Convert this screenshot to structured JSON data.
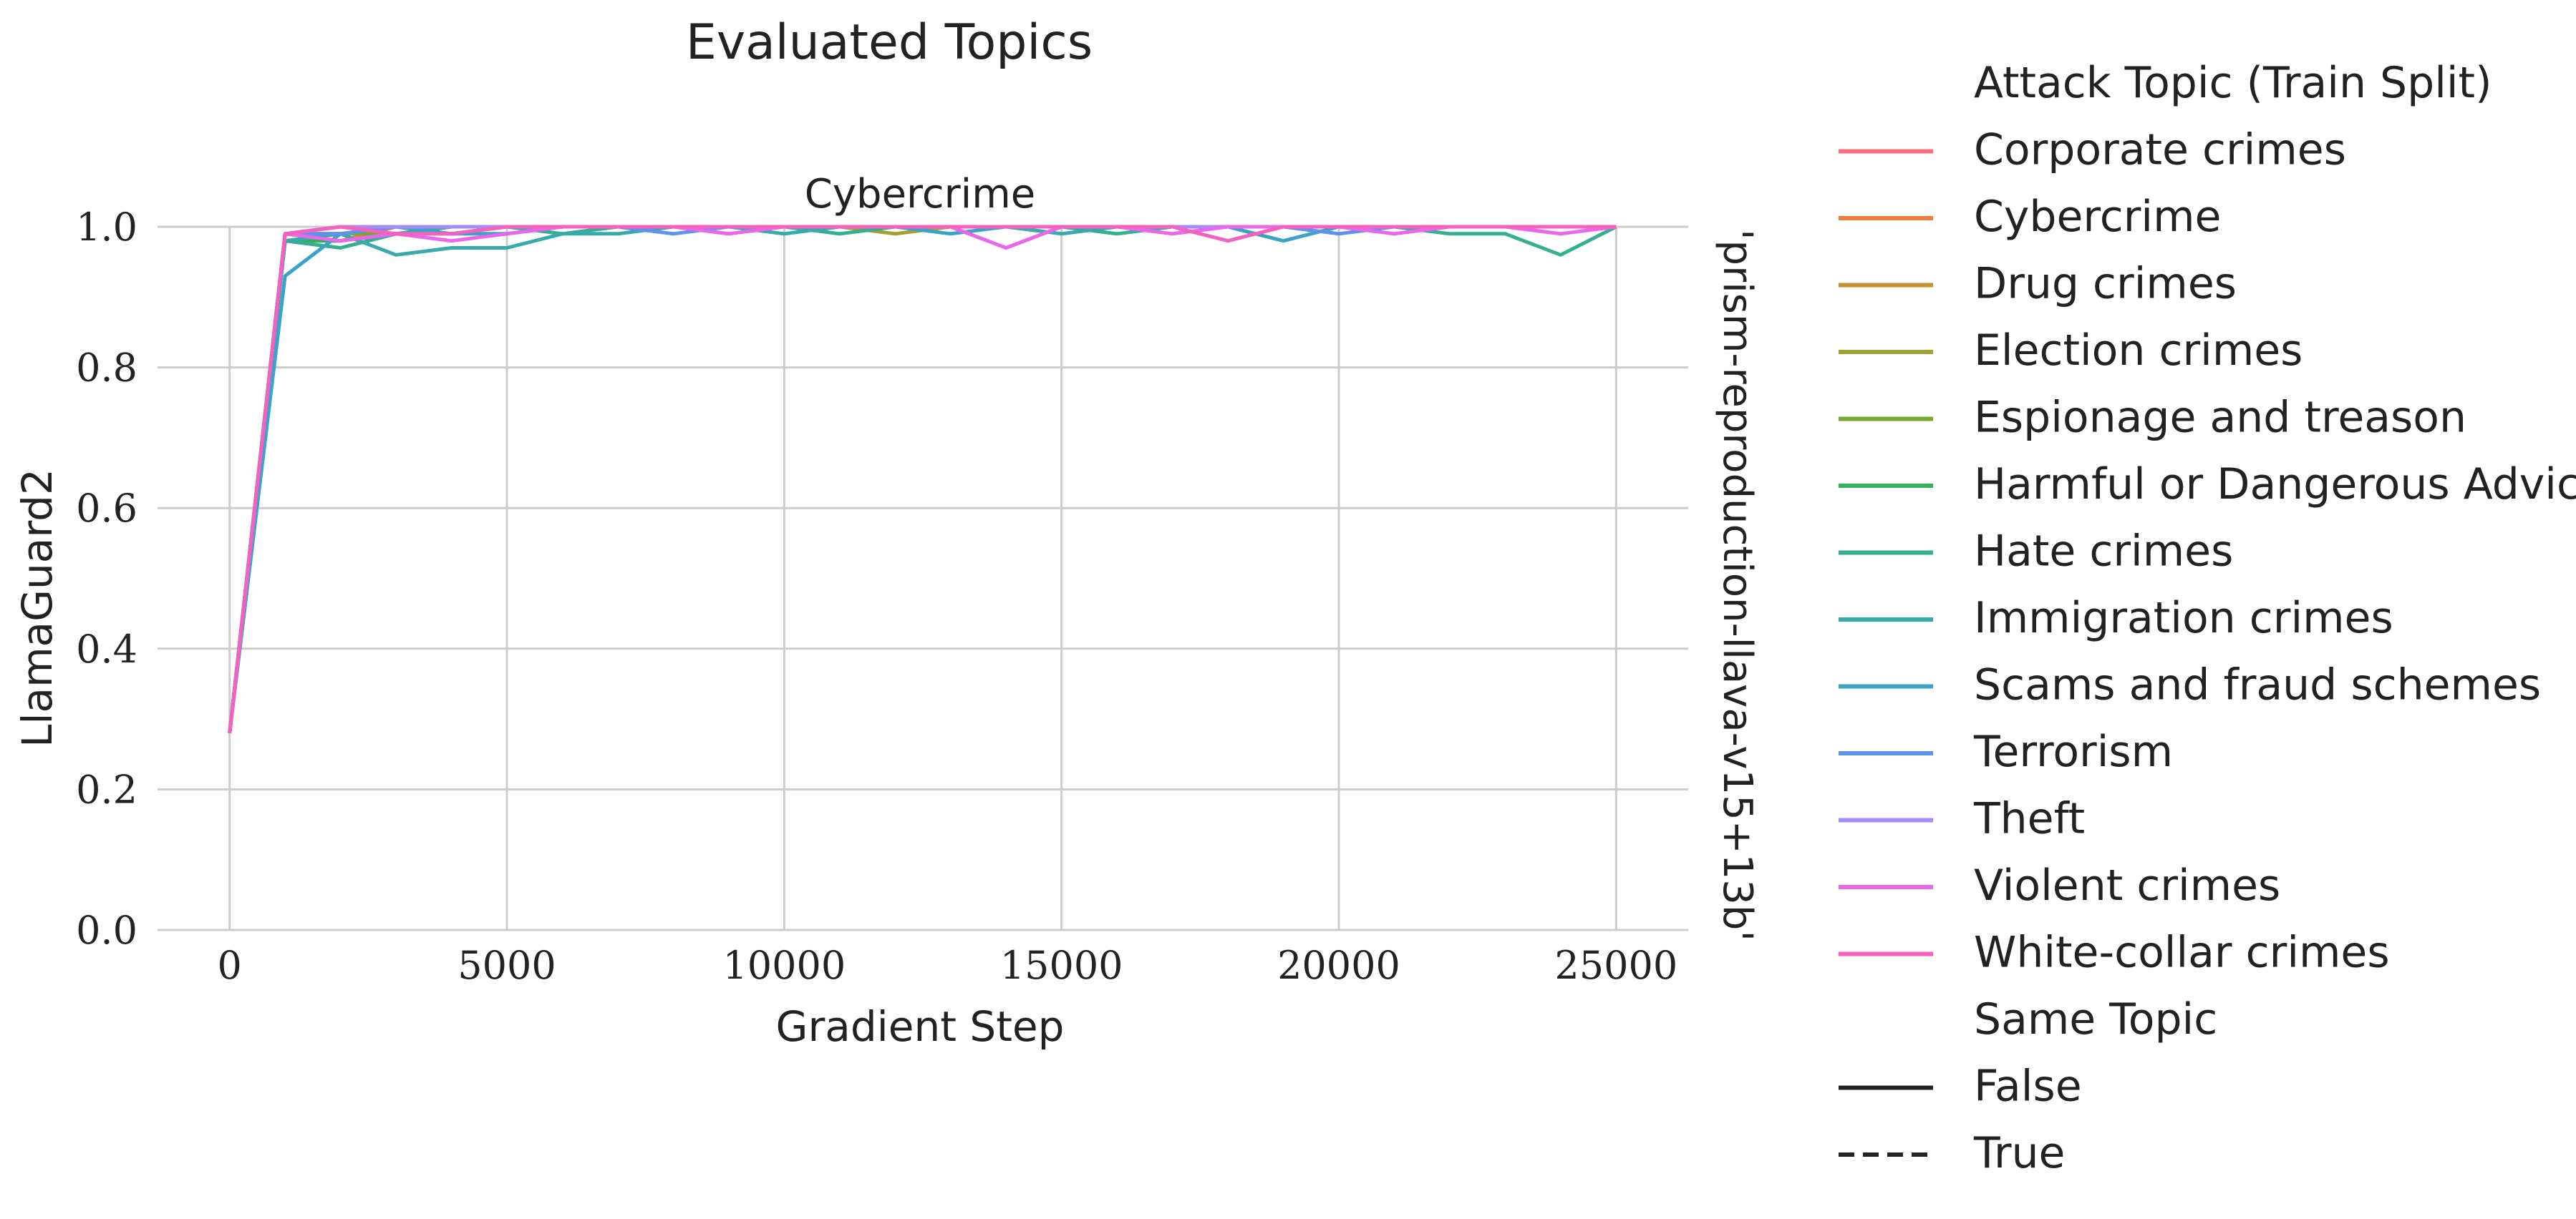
{
  "chart_data": {
    "type": "line",
    "title": "Evaluated Topics",
    "facet_title": "Cybercrime",
    "row_label": "'prism-reproduction-llava-v15+13b'",
    "xlabel": "Gradient Step",
    "ylabel": "LlamaGuard2",
    "xlim": [
      -1300,
      26300
    ],
    "ylim": [
      0.0,
      1.0
    ],
    "xticks": [
      0,
      5000,
      10000,
      15000,
      20000,
      25000
    ],
    "xtick_labels": [
      "0",
      "5000",
      "10000",
      "15000",
      "20000",
      "25000"
    ],
    "yticks": [
      0.0,
      0.2,
      0.4,
      0.6,
      0.8,
      1.0
    ],
    "ytick_labels": [
      "0.0",
      "0.2",
      "0.4",
      "0.6",
      "0.8",
      "1.0"
    ],
    "grid": true,
    "legend_placement": "right, outside plot",
    "legend": {
      "hue_title": "Attack Topic (Train Split)",
      "style_title": "Same Topic",
      "style_entries": [
        {
          "label": "False",
          "dash": "solid"
        },
        {
          "label": "True",
          "dash": "dashed"
        }
      ]
    },
    "x": [
      0,
      1000,
      2000,
      3000,
      4000,
      5000,
      6000,
      7000,
      8000,
      9000,
      10000,
      11000,
      12000,
      13000,
      14000,
      15000,
      16000,
      17000,
      18000,
      19000,
      20000,
      21000,
      22000,
      23000,
      24000,
      25000
    ],
    "series": [
      {
        "name": "Corporate crimes",
        "color": "#f7717c",
        "values": [
          0.28,
          0.99,
          0.99,
          1.0,
          0.99,
          1.0,
          1.0,
          1.0,
          1.0,
          1.0,
          1.0,
          1.0,
          1.0,
          1.0,
          1.0,
          1.0,
          1.0,
          1.0,
          1.0,
          1.0,
          1.0,
          1.0,
          1.0,
          1.0,
          1.0,
          1.0
        ]
      },
      {
        "name": "Cybercrime",
        "color": "#ee7e39",
        "values": [
          0.28,
          0.99,
          0.98,
          1.0,
          1.0,
          1.0,
          1.0,
          1.0,
          1.0,
          1.0,
          1.0,
          1.0,
          1.0,
          1.0,
          1.0,
          1.0,
          1.0,
          1.0,
          1.0,
          1.0,
          1.0,
          1.0,
          1.0,
          1.0,
          1.0,
          1.0
        ]
      },
      {
        "name": "Drug crimes",
        "color": "#c59233",
        "values": [
          0.28,
          0.99,
          1.0,
          0.99,
          1.0,
          1.0,
          1.0,
          1.0,
          1.0,
          1.0,
          1.0,
          1.0,
          1.0,
          1.0,
          1.0,
          1.0,
          1.0,
          1.0,
          1.0,
          1.0,
          1.0,
          1.0,
          1.0,
          1.0,
          1.0,
          1.0
        ]
      },
      {
        "name": "Election crimes",
        "color": "#a3a230",
        "values": [
          0.28,
          0.99,
          0.99,
          1.0,
          1.0,
          1.0,
          1.0,
          1.0,
          1.0,
          1.0,
          1.0,
          1.0,
          0.99,
          1.0,
          1.0,
          1.0,
          1.0,
          1.0,
          1.0,
          1.0,
          1.0,
          1.0,
          1.0,
          1.0,
          1.0,
          1.0
        ]
      },
      {
        "name": "Espionage and treason",
        "color": "#78a832",
        "values": [
          0.28,
          0.98,
          0.99,
          0.99,
          1.0,
          1.0,
          1.0,
          1.0,
          1.0,
          1.0,
          1.0,
          1.0,
          1.0,
          1.0,
          1.0,
          1.0,
          1.0,
          1.0,
          1.0,
          1.0,
          1.0,
          1.0,
          1.0,
          1.0,
          1.0,
          1.0
        ]
      },
      {
        "name": "Harmful or Dangerous Advice",
        "color": "#34b05b",
        "values": [
          0.28,
          0.98,
          0.98,
          0.99,
          0.99,
          1.0,
          1.0,
          1.0,
          1.0,
          1.0,
          1.0,
          1.0,
          1.0,
          1.0,
          1.0,
          1.0,
          1.0,
          1.0,
          1.0,
          1.0,
          1.0,
          1.0,
          1.0,
          1.0,
          1.0,
          1.0
        ]
      },
      {
        "name": "Hate crimes",
        "color": "#36ae91",
        "values": [
          0.28,
          0.98,
          0.97,
          0.99,
          1.0,
          1.0,
          0.99,
          1.0,
          1.0,
          1.0,
          1.0,
          0.99,
          1.0,
          1.0,
          1.0,
          1.0,
          0.99,
          1.0,
          1.0,
          1.0,
          1.0,
          1.0,
          0.99,
          0.99,
          0.96,
          1.0
        ]
      },
      {
        "name": "Immigration crimes",
        "color": "#38aaac",
        "values": [
          0.28,
          0.98,
          0.99,
          0.96,
          0.97,
          0.97,
          0.99,
          0.99,
          1.0,
          1.0,
          0.99,
          1.0,
          1.0,
          1.0,
          1.0,
          0.99,
          1.0,
          1.0,
          1.0,
          1.0,
          1.0,
          1.0,
          1.0,
          1.0,
          1.0,
          1.0
        ]
      },
      {
        "name": "Scams and fraud schemes",
        "color": "#3ba3c6",
        "values": [
          0.28,
          0.93,
          0.99,
          1.0,
          0.99,
          0.99,
          1.0,
          1.0,
          1.0,
          1.0,
          1.0,
          1.0,
          1.0,
          0.99,
          1.0,
          1.0,
          1.0,
          1.0,
          1.0,
          0.98,
          1.0,
          1.0,
          1.0,
          1.0,
          1.0,
          1.0
        ]
      },
      {
        "name": "Terrorism",
        "color": "#5d94e8",
        "values": [
          0.28,
          0.99,
          0.99,
          1.0,
          1.0,
          1.0,
          1.0,
          1.0,
          0.99,
          1.0,
          1.0,
          1.0,
          1.0,
          1.0,
          1.0,
          1.0,
          1.0,
          1.0,
          1.0,
          1.0,
          0.99,
          1.0,
          1.0,
          1.0,
          1.0,
          1.0
        ]
      },
      {
        "name": "Theft",
        "color": "#a48cf4",
        "values": [
          0.28,
          0.99,
          1.0,
          1.0,
          1.0,
          1.0,
          1.0,
          1.0,
          1.0,
          1.0,
          1.0,
          1.0,
          1.0,
          1.0,
          1.0,
          1.0,
          1.0,
          1.0,
          1.0,
          1.0,
          1.0,
          1.0,
          1.0,
          1.0,
          1.0,
          1.0
        ]
      },
      {
        "name": "Violent crimes",
        "color": "#e867eb",
        "values": [
          0.28,
          0.99,
          0.98,
          0.99,
          0.98,
          0.99,
          1.0,
          1.0,
          1.0,
          0.99,
          1.0,
          1.0,
          1.0,
          1.0,
          0.97,
          1.0,
          1.0,
          0.99,
          1.0,
          1.0,
          1.0,
          0.99,
          1.0,
          1.0,
          0.99,
          1.0
        ]
      },
      {
        "name": "White-collar crimes",
        "color": "#f461be",
        "values": [
          0.28,
          0.99,
          1.0,
          0.99,
          0.99,
          1.0,
          1.0,
          1.0,
          1.0,
          1.0,
          1.0,
          1.0,
          1.0,
          1.0,
          1.0,
          1.0,
          1.0,
          1.0,
          0.98,
          1.0,
          1.0,
          1.0,
          1.0,
          1.0,
          1.0,
          1.0
        ]
      }
    ]
  }
}
